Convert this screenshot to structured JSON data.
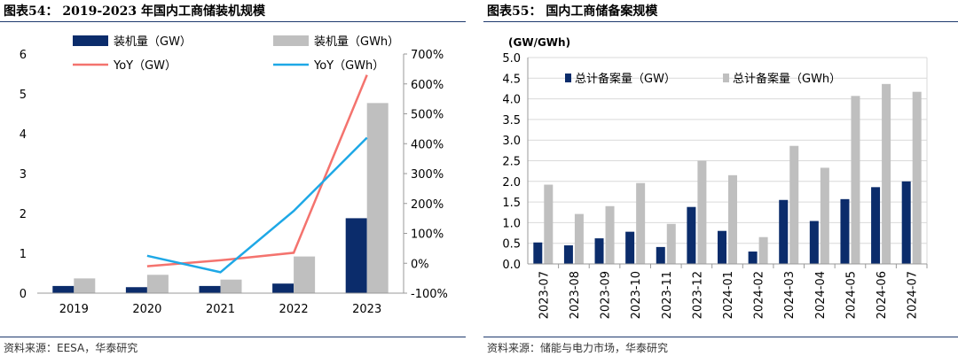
{
  "left": {
    "title": "图表54： 2019-2023 年国内工商储装机规模",
    "source": "资料来源：EESA，华泰研究",
    "chart_data": {
      "type": "bar",
      "categories": [
        "2019",
        "2020",
        "2021",
        "2022",
        "2023"
      ],
      "series": [
        {
          "name": "装机量（GW）",
          "kind": "bar",
          "axis": "left",
          "color": "#0b2c6b",
          "values": [
            0.18,
            0.15,
            0.18,
            0.24,
            1.88
          ]
        },
        {
          "name": "装机量（GWh）",
          "kind": "bar",
          "axis": "left",
          "color": "#bfbfbf",
          "values": [
            0.37,
            0.46,
            0.34,
            0.92,
            4.77
          ]
        },
        {
          "name": "YoY（GW）",
          "kind": "line",
          "axis": "right",
          "color": "#f4736e",
          "values": [
            null,
            -10,
            10,
            35,
            630
          ]
        },
        {
          "name": "YoY（GWh）",
          "kind": "line",
          "axis": "right",
          "color": "#1ea8e6",
          "values": [
            null,
            25,
            -30,
            175,
            420
          ]
        }
      ],
      "ylim": [
        0,
        6
      ],
      "y_ticks": [
        "0",
        "1",
        "2",
        "3",
        "4",
        "5",
        "6"
      ],
      "y2lim": [
        -100,
        700
      ],
      "y2_ticks": [
        "-100%",
        "0%",
        "100%",
        "200%",
        "300%",
        "400%",
        "500%",
        "600%",
        "700%"
      ],
      "grid": false,
      "legend": "top"
    }
  },
  "right": {
    "title": "图表55： 国内工商储备案规模",
    "source": "资料来源：储能与电力市场，华泰研究",
    "chart_data": {
      "type": "bar",
      "unit_label": "(GW/GWh)",
      "categories": [
        "2023-07",
        "2023-08",
        "2023-09",
        "2023-10",
        "2023-11",
        "2023-12",
        "2024-01",
        "2024-02",
        "2024-03",
        "2024-04",
        "2024-05",
        "2024-06",
        "2024-07"
      ],
      "series": [
        {
          "name": "总计备案量（GW）",
          "color": "#0b2c6b",
          "values": [
            0.52,
            0.45,
            0.62,
            0.78,
            0.41,
            1.38,
            0.8,
            0.3,
            1.55,
            1.04,
            1.57,
            1.86,
            2.0
          ]
        },
        {
          "name": "总计备案量（GWh）",
          "color": "#bfbfbf",
          "values": [
            1.92,
            1.21,
            1.4,
            1.96,
            0.97,
            2.5,
            2.15,
            0.65,
            2.86,
            2.33,
            4.07,
            4.36,
            4.17
          ]
        }
      ],
      "ylim": [
        0,
        5
      ],
      "y_ticks": [
        "0.0",
        "0.5",
        "1.0",
        "1.5",
        "2.0",
        "2.5",
        "3.0",
        "3.5",
        "4.0",
        "4.5",
        "5.0"
      ],
      "grid": true,
      "legend": "top"
    }
  }
}
